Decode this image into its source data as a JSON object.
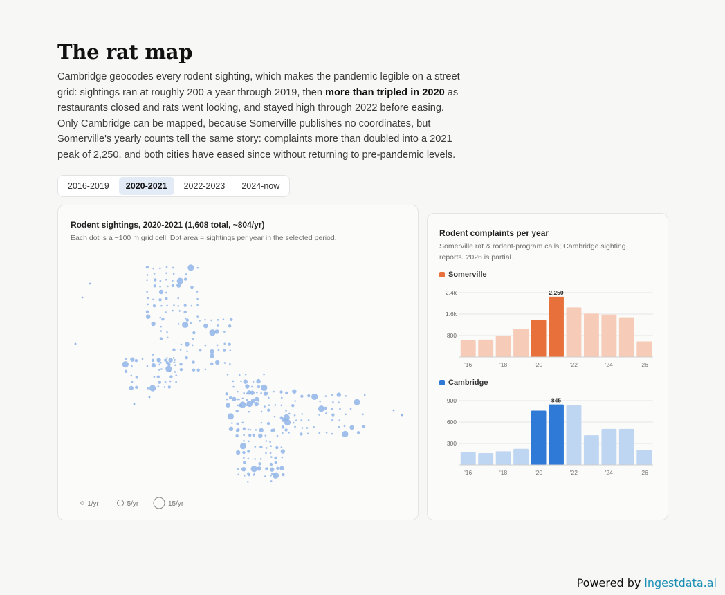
{
  "header": {
    "title": "The rat map",
    "intro_part1": "Cambridge geocodes every rodent sighting, which makes the pandemic legible on a street grid: sightings ran at roughly 200 a year through 2019, then ",
    "intro_bold": "more than tripled in 2020",
    "intro_part2": " as restaurants closed and rats went looking, and stayed high through 2022 before easing. Only Cambridge can be mapped, because Somerville publishes no coordinates, but Somerville's yearly counts tell the same story: complaints more than doubled into a 2021 peak of 2,250, and both cities have eased since without returning to pre-pandemic levels."
  },
  "tabs": [
    {
      "label": "2016-2019",
      "active": false
    },
    {
      "label": "2020-2021",
      "active": true
    },
    {
      "label": "2022-2023",
      "active": false
    },
    {
      "label": "2024-now",
      "active": false
    }
  ],
  "map": {
    "title": "Rodent sightings, 2020-2021 (1,608 total, ~804/yr)",
    "subtitle": "Each dot is a ~100 m grid cell. Dot area = sightings per year in the selected period.",
    "dot_color": "#8fb4e6",
    "legend": [
      {
        "label": "1/yr",
        "value": 1
      },
      {
        "label": "5/yr",
        "value": 5
      },
      {
        "label": "15/yr",
        "value": 15
      }
    ]
  },
  "side": {
    "title": "Rodent complaints per year",
    "subtitle_line1": "Somerville rat & rodent-program calls; Cambridge sighting",
    "subtitle_line2": "reports. 2026 is partial."
  },
  "chart_data": [
    {
      "type": "bar",
      "legend": "Somerville",
      "categories": [
        "2016",
        "2017",
        "2018",
        "2019",
        "2020",
        "2021",
        "2022",
        "2023",
        "2024",
        "2025",
        "2026"
      ],
      "values": [
        620,
        650,
        800,
        1050,
        1380,
        2250,
        1850,
        1620,
        1580,
        1480,
        580
      ],
      "x_tick_labels": [
        "'16",
        "'18",
        "'20",
        "'22",
        "'24",
        "'26"
      ],
      "y_ticks": [
        800,
        1600,
        2400
      ],
      "y_tick_labels": [
        "800",
        "1.6k",
        "2.4k"
      ],
      "ylim": [
        0,
        2400
      ],
      "highlight": [
        "2020",
        "2021"
      ],
      "peak_label": "2,250",
      "color": "#e8703a",
      "color_light": "#f6cbb7"
    },
    {
      "type": "bar",
      "legend": "Cambridge",
      "categories": [
        "2016",
        "2017",
        "2018",
        "2019",
        "2020",
        "2021",
        "2022",
        "2023",
        "2024",
        "2025",
        "2026"
      ],
      "values": [
        180,
        165,
        190,
        225,
        760,
        845,
        835,
        415,
        505,
        505,
        210
      ],
      "x_tick_labels": [
        "'16",
        "'18",
        "'20",
        "'22",
        "'24",
        "'26"
      ],
      "y_ticks": [
        300,
        600,
        900
      ],
      "y_tick_labels": [
        "300",
        "600",
        "900"
      ],
      "ylim": [
        0,
        900
      ],
      "highlight": [
        "2020",
        "2021"
      ],
      "peak_label": "845",
      "color": "#2f7ad6",
      "color_light": "#bfd6f2"
    }
  ],
  "footer": {
    "powered_prefix": "Powered by ",
    "powered_brand": "ingestdata.ai"
  }
}
